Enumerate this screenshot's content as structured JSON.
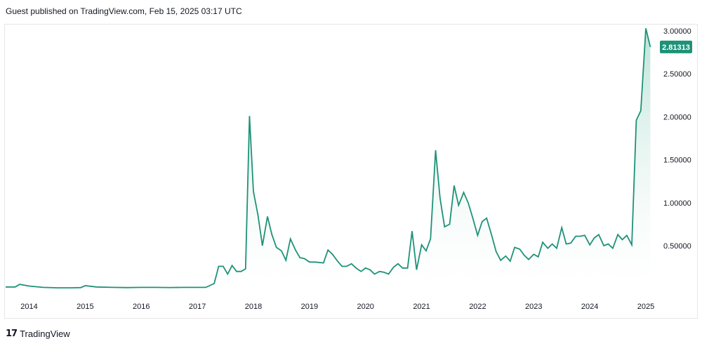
{
  "header": {
    "text": "Guest published on TradingView.com, Feb 15, 2025 03:17 UTC"
  },
  "footer": {
    "logo_icon": "tradingview-logo-icon",
    "logo_mark": "17",
    "brand": "TradingView"
  },
  "colors": {
    "line": "#1e9277",
    "area_top": "#b5e0d4",
    "area_bottom": "#ffffff",
    "price_tag_bg": "#1e9277",
    "price_tag_text": "#ffffff"
  },
  "chart_data": {
    "type": "area",
    "title": "",
    "xlabel": "",
    "ylabel": "",
    "grid": false,
    "y_axis_side": "right",
    "ylim": [
      0,
      3.0
    ],
    "xlim": [
      2013.58,
      2025.1
    ],
    "x_ticks": [
      "2014",
      "2015",
      "2016",
      "2017",
      "2018",
      "2019",
      "2020",
      "2021",
      "2022",
      "2023",
      "2024",
      "2025"
    ],
    "y_ticks": [
      "0.50000",
      "1.00000",
      "1.50000",
      "2.00000",
      "2.50000",
      "3.00000"
    ],
    "last_value_label": "2.81313",
    "last_value": 2.81313,
    "series": [
      {
        "points": [
          [
            2013.58,
            0.02
          ],
          [
            2013.75,
            0.02
          ],
          [
            2013.83,
            0.05
          ],
          [
            2014.0,
            0.03
          ],
          [
            2014.25,
            0.015
          ],
          [
            2014.5,
            0.01
          ],
          [
            2014.75,
            0.01
          ],
          [
            2014.92,
            0.012
          ],
          [
            2015.0,
            0.035
          ],
          [
            2015.2,
            0.02
          ],
          [
            2015.5,
            0.015
          ],
          [
            2015.75,
            0.012
          ],
          [
            2016.0,
            0.015
          ],
          [
            2016.25,
            0.015
          ],
          [
            2016.5,
            0.013
          ],
          [
            2016.75,
            0.015
          ],
          [
            2017.0,
            0.015
          ],
          [
            2017.15,
            0.015
          ],
          [
            2017.3,
            0.06
          ],
          [
            2017.38,
            0.26
          ],
          [
            2017.46,
            0.26
          ],
          [
            2017.54,
            0.17
          ],
          [
            2017.62,
            0.27
          ],
          [
            2017.7,
            0.2
          ],
          [
            2017.78,
            0.2
          ],
          [
            2017.86,
            0.23
          ],
          [
            2017.93,
            2.01
          ],
          [
            2018.0,
            1.13
          ],
          [
            2018.08,
            0.86
          ],
          [
            2018.16,
            0.5
          ],
          [
            2018.25,
            0.84
          ],
          [
            2018.33,
            0.63
          ],
          [
            2018.41,
            0.48
          ],
          [
            2018.5,
            0.44
          ],
          [
            2018.58,
            0.33
          ],
          [
            2018.66,
            0.58
          ],
          [
            2018.75,
            0.45
          ],
          [
            2018.83,
            0.36
          ],
          [
            2018.91,
            0.35
          ],
          [
            2019.0,
            0.31
          ],
          [
            2019.1,
            0.31
          ],
          [
            2019.25,
            0.3
          ],
          [
            2019.33,
            0.45
          ],
          [
            2019.41,
            0.4
          ],
          [
            2019.5,
            0.32
          ],
          [
            2019.58,
            0.26
          ],
          [
            2019.66,
            0.26
          ],
          [
            2019.75,
            0.29
          ],
          [
            2019.83,
            0.24
          ],
          [
            2019.92,
            0.2
          ],
          [
            2020.0,
            0.24
          ],
          [
            2020.08,
            0.22
          ],
          [
            2020.16,
            0.17
          ],
          [
            2020.25,
            0.2
          ],
          [
            2020.33,
            0.19
          ],
          [
            2020.41,
            0.17
          ],
          [
            2020.5,
            0.25
          ],
          [
            2020.58,
            0.29
          ],
          [
            2020.66,
            0.24
          ],
          [
            2020.75,
            0.24
          ],
          [
            2020.83,
            0.67
          ],
          [
            2020.91,
            0.22
          ],
          [
            2021.0,
            0.51
          ],
          [
            2021.08,
            0.44
          ],
          [
            2021.16,
            0.58
          ],
          [
            2021.25,
            1.61
          ],
          [
            2021.33,
            1.05
          ],
          [
            2021.41,
            0.72
          ],
          [
            2021.5,
            0.75
          ],
          [
            2021.58,
            1.2
          ],
          [
            2021.66,
            0.97
          ],
          [
            2021.75,
            1.12
          ],
          [
            2021.83,
            1.0
          ],
          [
            2021.91,
            0.83
          ],
          [
            2022.0,
            0.62
          ],
          [
            2022.08,
            0.78
          ],
          [
            2022.16,
            0.82
          ],
          [
            2022.25,
            0.62
          ],
          [
            2022.33,
            0.43
          ],
          [
            2022.41,
            0.33
          ],
          [
            2022.5,
            0.38
          ],
          [
            2022.58,
            0.32
          ],
          [
            2022.66,
            0.48
          ],
          [
            2022.75,
            0.46
          ],
          [
            2022.83,
            0.39
          ],
          [
            2022.91,
            0.34
          ],
          [
            2023.0,
            0.4
          ],
          [
            2023.08,
            0.37
          ],
          [
            2023.16,
            0.54
          ],
          [
            2023.25,
            0.47
          ],
          [
            2023.33,
            0.52
          ],
          [
            2023.41,
            0.47
          ],
          [
            2023.5,
            0.71
          ],
          [
            2023.58,
            0.52
          ],
          [
            2023.66,
            0.53
          ],
          [
            2023.75,
            0.61
          ],
          [
            2023.83,
            0.61
          ],
          [
            2023.91,
            0.62
          ],
          [
            2024.0,
            0.51
          ],
          [
            2024.08,
            0.59
          ],
          [
            2024.16,
            0.63
          ],
          [
            2024.25,
            0.5
          ],
          [
            2024.33,
            0.52
          ],
          [
            2024.41,
            0.47
          ],
          [
            2024.5,
            0.63
          ],
          [
            2024.58,
            0.57
          ],
          [
            2024.66,
            0.62
          ],
          [
            2024.75,
            0.51
          ],
          [
            2024.83,
            1.96
          ],
          [
            2024.91,
            2.07
          ],
          [
            2025.0,
            3.03
          ],
          [
            2025.08,
            2.81313
          ]
        ]
      }
    ]
  }
}
